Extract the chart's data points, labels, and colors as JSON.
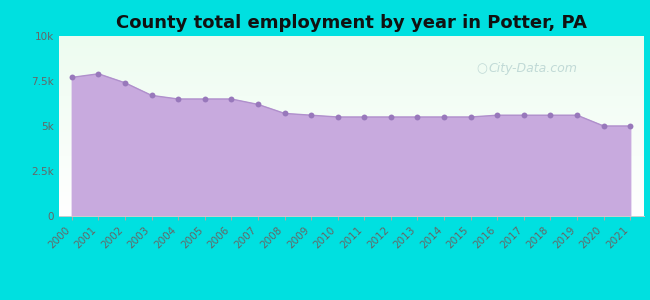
{
  "title": "County total employment by year in Potter, PA",
  "years": [
    2000,
    2001,
    2002,
    2003,
    2004,
    2005,
    2006,
    2007,
    2008,
    2009,
    2010,
    2011,
    2012,
    2013,
    2014,
    2015,
    2016,
    2017,
    2018,
    2019,
    2020,
    2021
  ],
  "values": [
    7700,
    7900,
    7400,
    6700,
    6500,
    6500,
    6500,
    6200,
    5700,
    5600,
    5500,
    5500,
    5500,
    5500,
    5500,
    5500,
    5600,
    5600,
    5600,
    5600,
    5000,
    5000
  ],
  "ylim": [
    0,
    10000
  ],
  "yticks": [
    0,
    2500,
    5000,
    7500,
    10000
  ],
  "ytick_labels": [
    "0",
    "2.5k",
    "5k",
    "7.5k",
    "10k"
  ],
  "background_outer": "#00e0e0",
  "background_inner_top": "#edfcf0",
  "background_inner_bottom": "#ffffff",
  "area_fill_color": "#c8aade",
  "area_fill_alpha": 1.0,
  "line_color": "#b090cc",
  "marker_color": "#9878bb",
  "marker_size": 18,
  "title_fontsize": 13,
  "title_fontweight": "bold",
  "watermark_text": "City-Data.com",
  "watermark_color": "#a8c8c8",
  "watermark_alpha": 0.65,
  "tick_label_color": "#666666",
  "tick_fontsize": 7.5,
  "spine_color": "#cccccc"
}
